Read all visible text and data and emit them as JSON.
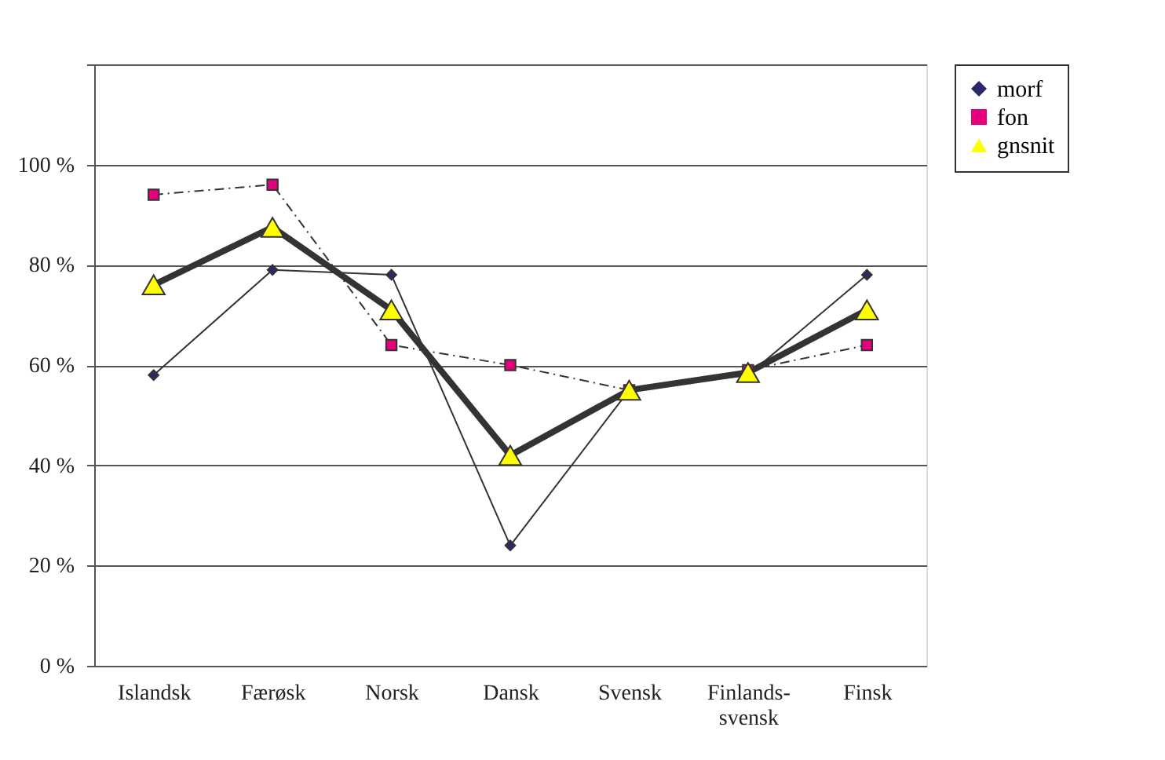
{
  "chart_data": {
    "type": "line",
    "categories": [
      "Islandsk",
      "Færøsk",
      "Norsk",
      "Dansk",
      "Svensk",
      "Finlands-\nsvensk",
      "Finsk"
    ],
    "series": [
      {
        "name": "morf",
        "color": "#2a2a66",
        "marker": "diamond",
        "line_style": "solid",
        "values": [
          58,
          79,
          78,
          24,
          55,
          58,
          78
        ]
      },
      {
        "name": "fon",
        "color": "#e6007e",
        "marker": "square",
        "line_style": "dashed",
        "values": [
          94,
          96,
          64,
          60,
          55,
          59,
          64
        ]
      },
      {
        "name": "gnsnit",
        "color": "#ffff00",
        "marker": "triangle",
        "line_style": "solid",
        "values": [
          76,
          87.5,
          71,
          42,
          55,
          58.5,
          71
        ]
      }
    ],
    "ylim": [
      0,
      120
    ],
    "yticks": [
      {
        "value": 0,
        "label": "0 %"
      },
      {
        "value": 20,
        "label": "20 %"
      },
      {
        "value": 40,
        "label": "40 %"
      },
      {
        "value": 60,
        "label": "60 %"
      },
      {
        "value": 80,
        "label": "80 %"
      },
      {
        "value": 100,
        "label": "100 %"
      },
      {
        "value": 120,
        "label": null
      }
    ],
    "grid": "y",
    "legend": "right"
  }
}
